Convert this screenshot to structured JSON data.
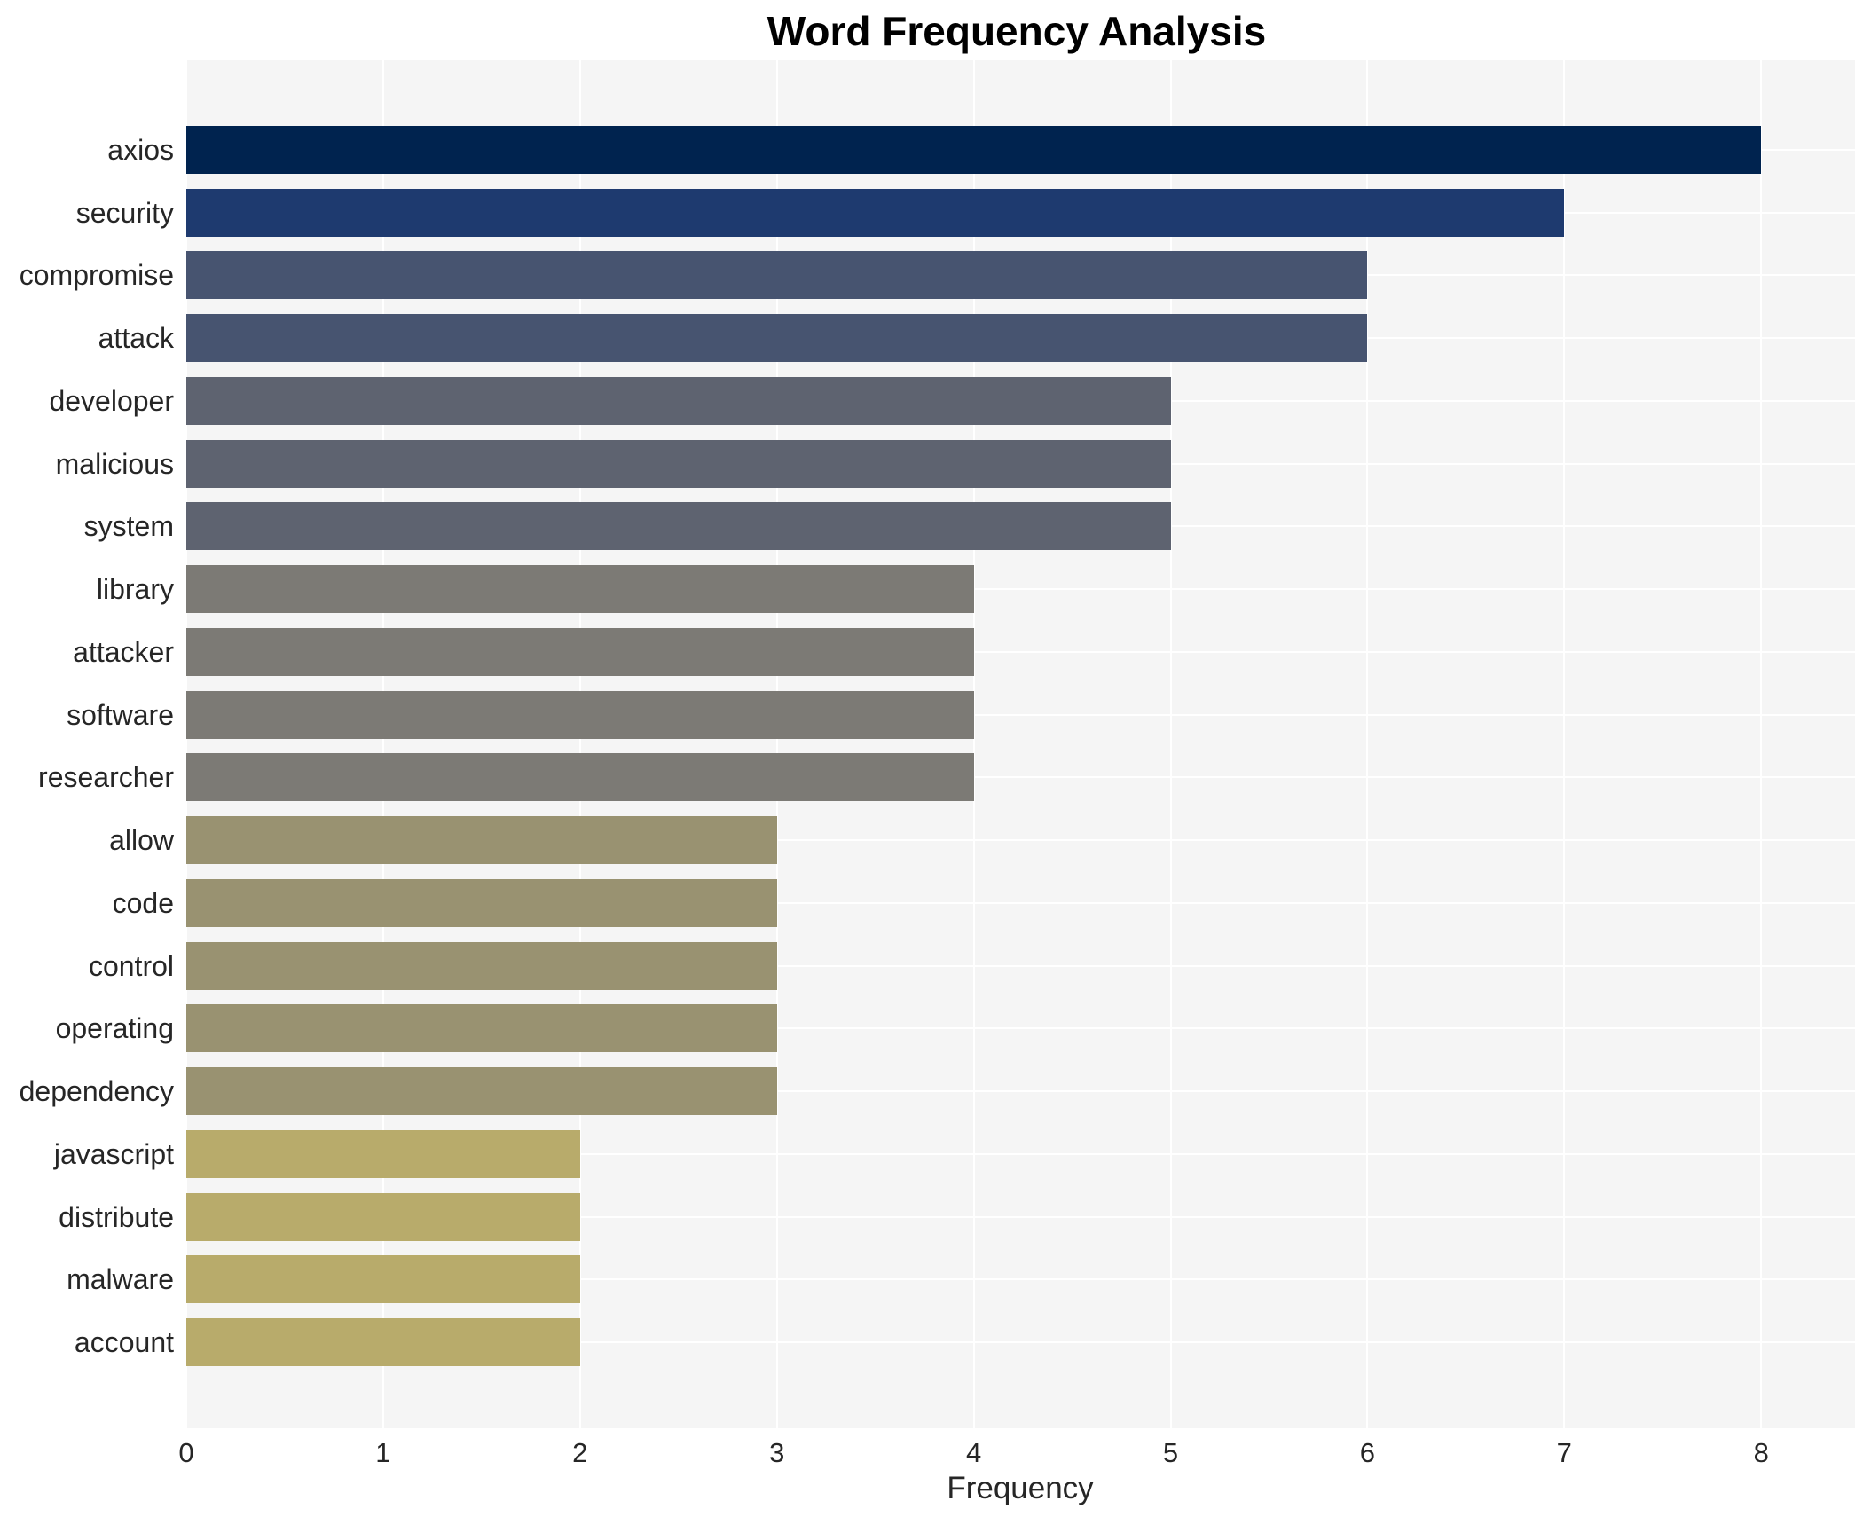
{
  "chart_data": {
    "type": "bar",
    "orientation": "horizontal",
    "title": "Word Frequency Analysis",
    "xlabel": "Frequency",
    "ylabel": "",
    "legend_position": "none",
    "grid": true,
    "plot_bg_color": "#f5f5f5",
    "grid_color": "#ffffff",
    "text_color": "#262626",
    "title_color": "#000000",
    "xlim": [
      0,
      8.48
    ],
    "xticks": [
      0,
      1,
      2,
      3,
      4,
      5,
      6,
      7,
      8
    ],
    "categories": [
      "axios",
      "security",
      "compromise",
      "attack",
      "developer",
      "malicious",
      "system",
      "library",
      "attacker",
      "software",
      "researcher",
      "allow",
      "code",
      "control",
      "operating",
      "dependency",
      "javascript",
      "distribute",
      "malware",
      "account"
    ],
    "values": [
      8,
      7,
      6,
      6,
      5,
      5,
      5,
      4,
      4,
      4,
      4,
      3,
      3,
      3,
      3,
      3,
      2,
      2,
      2,
      2
    ],
    "bar_colors": [
      "#00234f",
      "#1e3a6f",
      "#475470",
      "#475470",
      "#5e6370",
      "#5e6370",
      "#5e6370",
      "#7c7a75",
      "#7c7a75",
      "#7c7a75",
      "#7c7a75",
      "#999271",
      "#999271",
      "#999271",
      "#999271",
      "#999271",
      "#b8ab6b",
      "#b8ab6b",
      "#b8ab6b",
      "#b8ab6b"
    ]
  }
}
